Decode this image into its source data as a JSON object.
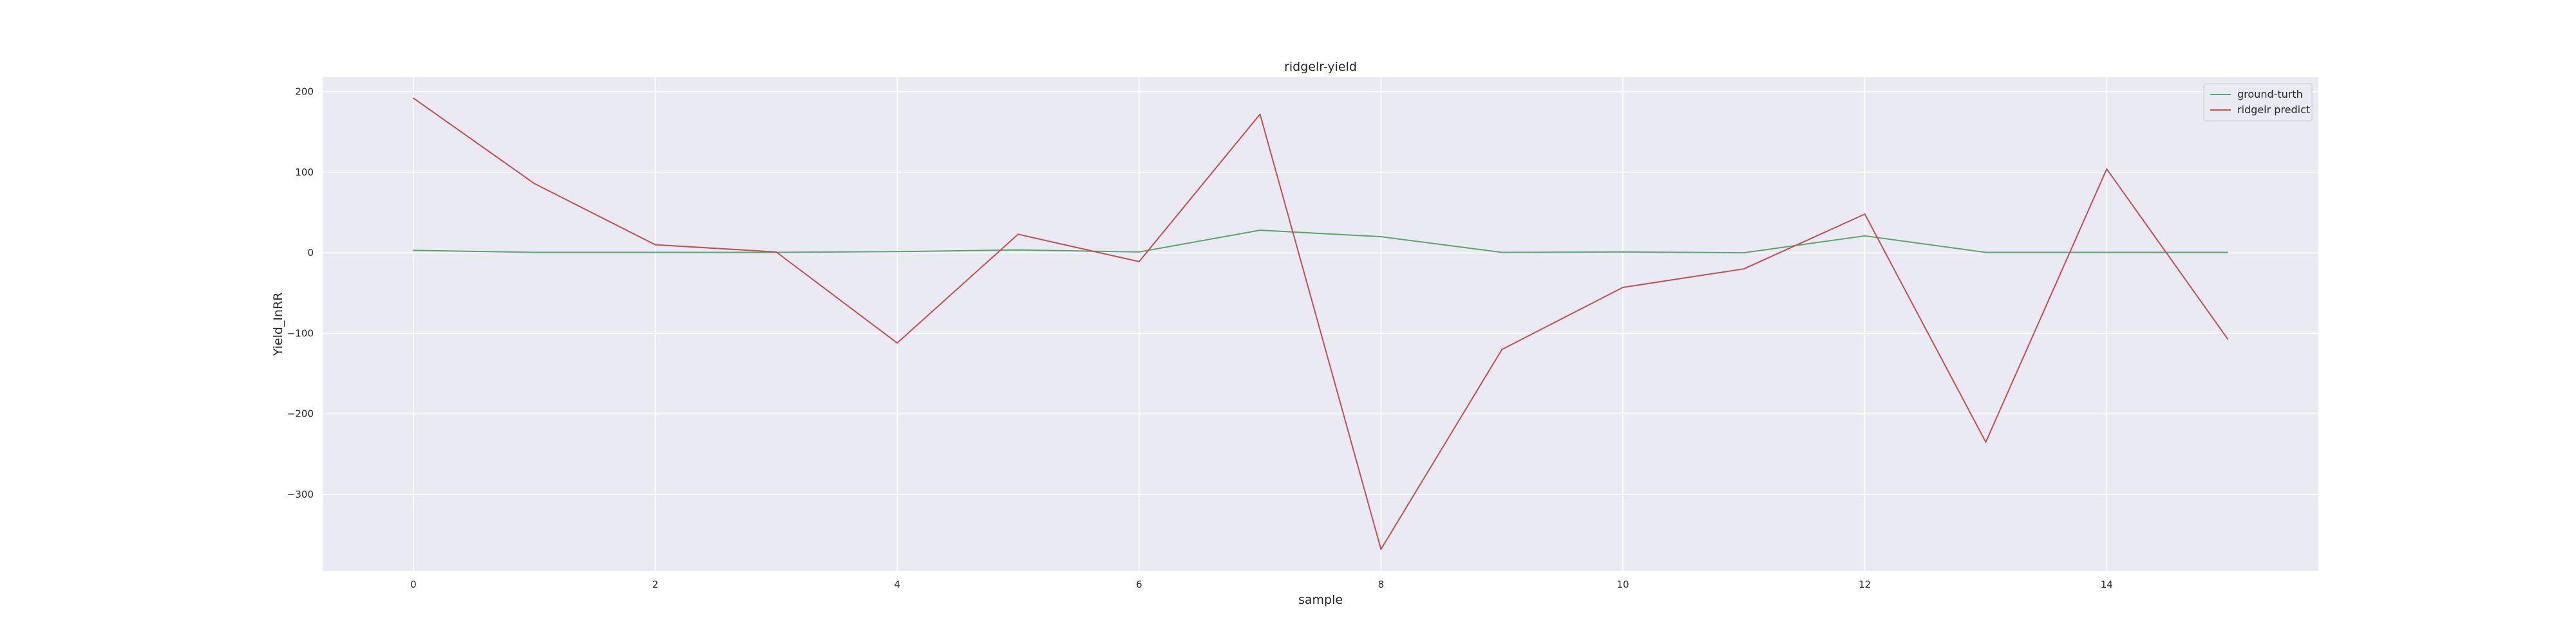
{
  "chart_data": {
    "type": "line",
    "title": "ridgelr-yield",
    "xlabel": "sample",
    "ylabel": "Yield_InRR",
    "x": [
      0,
      1,
      2,
      3,
      4,
      5,
      6,
      7,
      8,
      9,
      10,
      11,
      12,
      13,
      14,
      15
    ],
    "xlim": [
      -0.75,
      15.75
    ],
    "ylim": [
      -395,
      218
    ],
    "xticks": [
      0,
      2,
      4,
      6,
      8,
      10,
      12,
      14
    ],
    "yticks": [
      -300,
      -200,
      -100,
      0,
      100,
      200
    ],
    "ytick_labels": [
      "−300",
      "−200",
      "−100",
      "0",
      "100",
      "200"
    ],
    "grid": true,
    "background": "#eaeaf2",
    "legend_position": "top-right",
    "series": [
      {
        "name": "ground-turth",
        "color": "#55a868",
        "values": [
          3,
          0.5,
          0.5,
          0.5,
          1.5,
          3.5,
          1,
          28,
          20,
          0.5,
          1,
          0,
          21,
          0.5,
          0.5,
          0.5
        ]
      },
      {
        "name": "ridgelr predict",
        "color": "#c44e52",
        "values": [
          192,
          86,
          10,
          1,
          -112,
          23,
          -11,
          172,
          -368,
          -120,
          -43,
          -20,
          48,
          -235,
          104,
          -107
        ]
      }
    ]
  }
}
